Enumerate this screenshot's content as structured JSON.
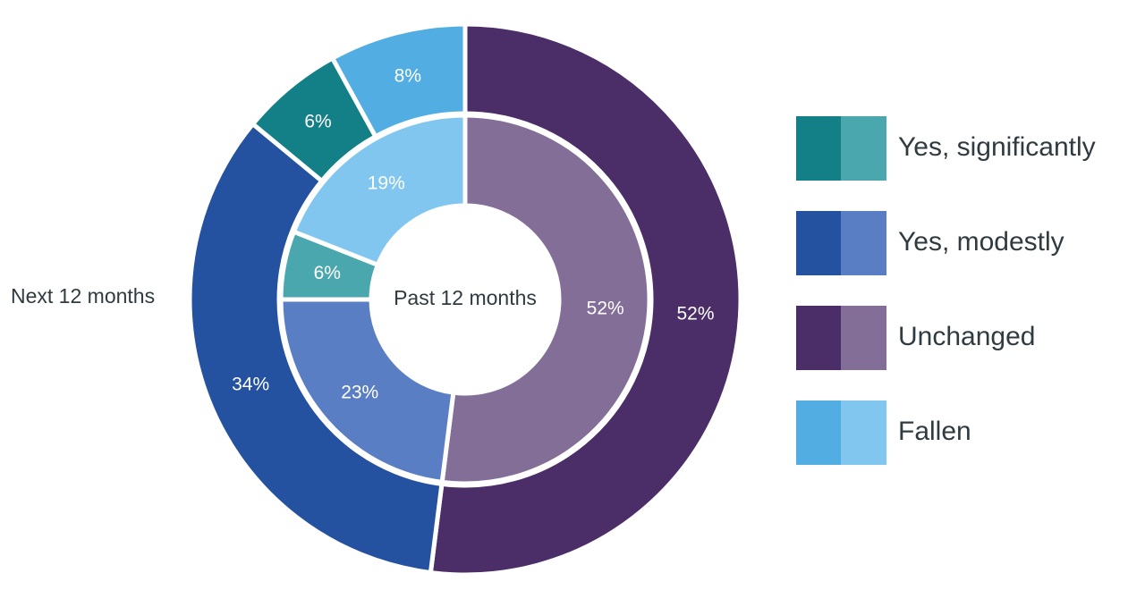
{
  "chart_data": {
    "type": "pie",
    "subtype": "nested-donut",
    "inner_ring": {
      "name": "Past 12 months",
      "values": [
        {
          "category": "Unchanged",
          "value": 52,
          "label": "52%"
        },
        {
          "category": "Yes, modestly",
          "value": 23,
          "label": "23%"
        },
        {
          "category": "Yes, significantly",
          "value": 6,
          "label": "6%"
        },
        {
          "category": "Fallen",
          "value": 19,
          "label": "19%"
        }
      ]
    },
    "outer_ring": {
      "name": "Next 12 months",
      "values": [
        {
          "category": "Unchanged",
          "value": 52,
          "label": "52%"
        },
        {
          "category": "Yes, modestly",
          "value": 34,
          "label": "34%"
        },
        {
          "category": "Yes, significantly",
          "value": 6,
          "label": "6%"
        },
        {
          "category": "Fallen",
          "value": 8,
          "label": "8%"
        }
      ]
    },
    "legend": [
      {
        "label": "Yes, significantly",
        "color_outer": "#137f86",
        "color_inner": "#4ba7ae"
      },
      {
        "label": "Yes, modestly",
        "color_outer": "#2451a0",
        "color_inner": "#5a7ec4"
      },
      {
        "label": "Unchanged",
        "color_outer": "#4b2d67",
        "color_inner": "#826e97"
      },
      {
        "label": "Fallen",
        "color_outer": "#52ade2",
        "color_inner": "#80c6ef"
      }
    ],
    "legend_position": "right"
  }
}
